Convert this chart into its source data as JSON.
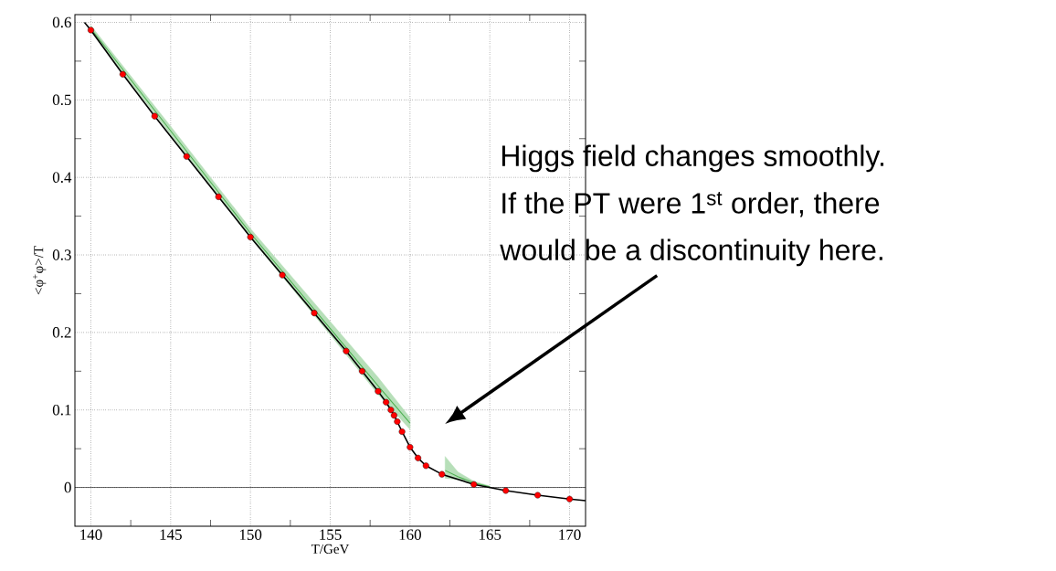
{
  "chart_data": {
    "type": "scatter",
    "xlabel": "T/GeV",
    "ylabel": "<φ$^{+}$φ>/T",
    "xlim": [
      139,
      171
    ],
    "ylim": [
      -0.05,
      0.61
    ],
    "xticks": [
      140,
      145,
      150,
      155,
      160,
      165,
      170
    ],
    "yticks": [
      0,
      0.1,
      0.2,
      0.3,
      0.4,
      0.5,
      0.6
    ],
    "grid": true,
    "ref_lines": [
      {
        "axis": "y",
        "value": 0,
        "color": "#000000"
      }
    ],
    "annotations": [
      "Higgs field changes smoothly.",
      "If the PT were 1$^{st}$ order, there",
      "would be a discontinuity here."
    ],
    "series": [
      {
        "type": "line",
        "color": "#4caf50",
        "x": [
          140,
          145,
          150,
          155,
          158,
          160
        ],
        "values": [
          0.592,
          0.46,
          0.328,
          0.205,
          0.131,
          0.083
        ],
        "lower": [
          0.588,
          0.455,
          0.322,
          0.197,
          0.12,
          0.075
        ],
        "upper": [
          0.596,
          0.466,
          0.334,
          0.214,
          0.142,
          0.09
        ]
      },
      {
        "type": "line",
        "color": "#4caf50",
        "x": [
          162.2,
          163,
          164,
          165
        ],
        "values": [
          0.022,
          0.014,
          0.006,
          0.001
        ],
        "lower": [
          0.012,
          0.01,
          0.004,
          0.0
        ],
        "upper": [
          0.04,
          0.02,
          0.008,
          0.002
        ]
      },
      {
        "type": "line",
        "color": "#000000",
        "x": [
          139.6,
          140,
          142,
          144,
          146,
          148,
          150,
          152,
          154,
          156,
          157,
          158,
          158.5,
          158.8,
          159,
          159.2,
          159.5,
          160,
          160.5,
          161,
          162,
          164,
          166,
          168,
          170,
          171
        ],
        "values": [
          0.6,
          0.59,
          0.533,
          0.479,
          0.427,
          0.375,
          0.323,
          0.274,
          0.225,
          0.176,
          0.15,
          0.124,
          0.11,
          0.1,
          0.093,
          0.085,
          0.072,
          0.052,
          0.038,
          0.028,
          0.017,
          0.004,
          -0.004,
          -0.01,
          -0.015,
          -0.017
        ]
      },
      {
        "color": "#ff0000",
        "x": [
          140,
          142,
          144,
          146,
          148,
          150,
          152,
          154,
          156,
          157,
          158,
          158.5,
          158.8,
          159,
          159.2,
          159.5,
          160,
          160.5,
          161,
          162,
          164,
          166,
          168,
          170
        ],
        "values": [
          0.59,
          0.533,
          0.479,
          0.427,
          0.375,
          0.323,
          0.274,
          0.225,
          0.176,
          0.15,
          0.124,
          0.11,
          0.1,
          0.093,
          0.085,
          0.072,
          0.052,
          0.038,
          0.028,
          0.017,
          0.004,
          -0.004,
          -0.01,
          -0.015
        ]
      }
    ]
  }
}
